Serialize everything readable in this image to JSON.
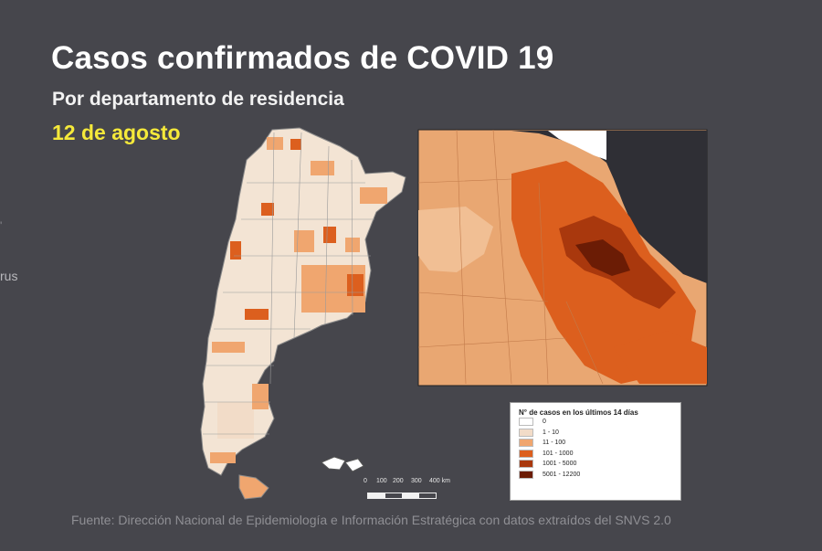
{
  "header": {
    "title": "Casos confirmados de COVID 19",
    "subtitle": "Por departamento de residencia",
    "date": "12 de agosto"
  },
  "edge": {
    "partial_text": "rus"
  },
  "legend": {
    "title": "N° de casos en los últimos 14 días",
    "items": [
      {
        "label": "0",
        "color": "#ffffff"
      },
      {
        "label": "1 - 10",
        "color": "#f2dcc8"
      },
      {
        "label": "11 - 100",
        "color": "#f0a66f"
      },
      {
        "label": "101 - 1000",
        "color": "#dc5f1e"
      },
      {
        "label": "1001 - 5000",
        "color": "#a9380d"
      },
      {
        "label": "5001 - 12200",
        "color": "#6b1c05"
      }
    ]
  },
  "scale": {
    "labels": [
      "0",
      "100",
      "200",
      "300",
      "400 km"
    ]
  },
  "source": "Fuente: Dirección Nacional de Epidemiología e Información Estratégica con datos extraídos del SNVS 2.0",
  "colors": {
    "background": "#46464c",
    "title": "#ffffff",
    "date": "#f5e93a",
    "source": "#8f8f94",
    "water": "#2f2f35"
  }
}
